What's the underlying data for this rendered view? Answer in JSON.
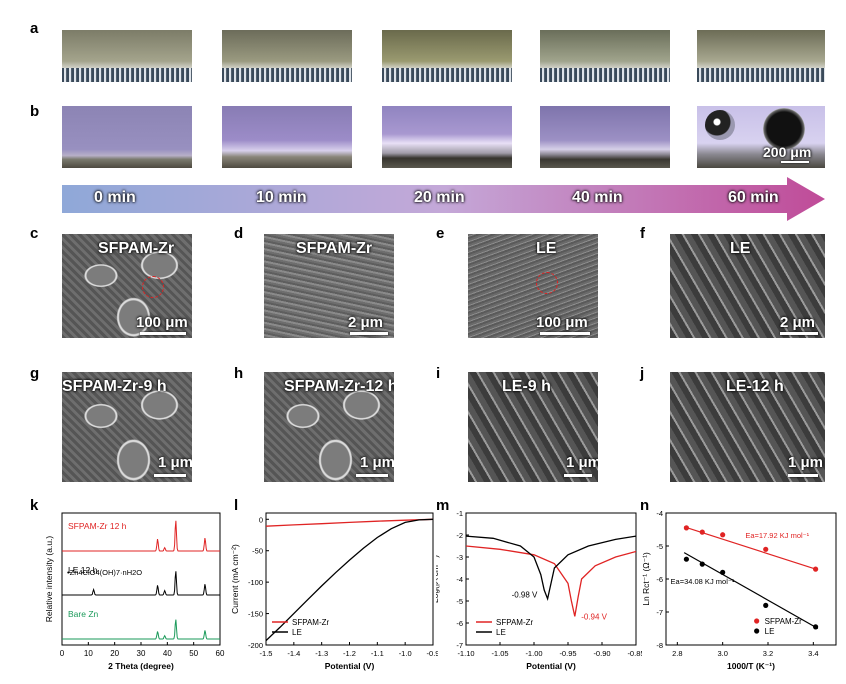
{
  "panels": [
    "a",
    "b",
    "c",
    "d",
    "e",
    "f",
    "g",
    "h",
    "i",
    "j",
    "k",
    "l",
    "m",
    "n"
  ],
  "timeline": [
    "0 min",
    "10 min",
    "20 min",
    "40 min",
    "60 min"
  ],
  "colors": {
    "red": "#e02424",
    "black": "#000000",
    "green": "#1a9a5a",
    "arrow_start": "#8fa8d8",
    "arrow_end": "#c04b98"
  },
  "panel_b_scale": "200 μm",
  "sem": {
    "c": {
      "label": "SFPAM-Zr",
      "scale": "100 μm"
    },
    "d": {
      "label": "SFPAM-Zr",
      "scale": "2 μm"
    },
    "e": {
      "label": "LE",
      "scale": "100 μm"
    },
    "f": {
      "label": "LE",
      "scale": "2 μm"
    },
    "g": {
      "label": "SFPAM-Zr-9 h",
      "scale": "1 μm"
    },
    "h": {
      "label": "SFPAM-Zr-12 h",
      "scale": "1 μm"
    },
    "i": {
      "label": "LE-9 h",
      "scale": "1 μm"
    },
    "j": {
      "label": "LE-12 h",
      "scale": "1 μm"
    }
  },
  "chart_data": [
    {
      "panel": "k",
      "type": "line",
      "title": "",
      "xlabel": "2 Theta (degree)",
      "ylabel": "Relative intensity (a.u.)",
      "xlim": [
        0,
        60
      ],
      "xticks": [
        "0",
        "10",
        "20",
        "30",
        "40",
        "50",
        "60"
      ],
      "series": [
        {
          "name": "SFPAM-Zr 12 h",
          "color": "#e02424",
          "baseline": 3,
          "peaks": [
            [
              36.3,
              0.55
            ],
            [
              39.0,
              0.15
            ],
            [
              43.2,
              1.4
            ],
            [
              54.3,
              0.6
            ]
          ]
        },
        {
          "name": "LE 12 h",
          "color": "#000000",
          "baseline": 2,
          "peaks": [
            [
              12.0,
              0.25
            ],
            [
              36.3,
              0.45
            ],
            [
              39.0,
              0.2
            ],
            [
              43.2,
              1.1
            ],
            [
              54.3,
              0.5
            ]
          ]
        },
        {
          "name": "Bare Zn",
          "color": "#1a9a5a",
          "baseline": 1,
          "peaks": [
            [
              36.3,
              0.35
            ],
            [
              39.0,
              0.15
            ],
            [
              43.2,
              0.9
            ],
            [
              54.3,
              0.4
            ]
          ]
        }
      ],
      "annotation": "•Zn4ClO4(OH)7·nH2O"
    },
    {
      "panel": "l",
      "type": "line",
      "title": "",
      "xlabel": "Potential (V)",
      "ylabel": "Current (mA cm⁻²)",
      "xlim": [
        -1.5,
        -0.9
      ],
      "ylim": [
        -200,
        10
      ],
      "xticks": [
        "-1.5",
        "-1.4",
        "-1.3",
        "-1.2",
        "-1.1",
        "-1.0",
        "-0.9"
      ],
      "yticks": [
        "0",
        "-50",
        "-100",
        "-150",
        "-200"
      ],
      "series": [
        {
          "name": "SFPAM-Zr",
          "color": "#e02424",
          "x": [
            -1.5,
            -1.4,
            -1.3,
            -1.2,
            -1.1,
            -1.0,
            -0.9
          ],
          "y": [
            -11,
            -9,
            -7,
            -5,
            -3,
            -1.5,
            0
          ]
        },
        {
          "name": "LE",
          "color": "#000000",
          "x": [
            -1.5,
            -1.45,
            -1.4,
            -1.35,
            -1.3,
            -1.25,
            -1.2,
            -1.15,
            -1.1,
            -1.05,
            -1.0,
            -0.95,
            -0.9
          ],
          "y": [
            -193,
            -172,
            -150,
            -128,
            -106,
            -85,
            -65,
            -46,
            -29,
            -15,
            -5,
            -1,
            0
          ]
        }
      ]
    },
    {
      "panel": "m",
      "type": "line",
      "title": "",
      "xlabel": "Potential (V)",
      "ylabel": "Log(|A cm⁻²)",
      "xlim": [
        -1.1,
        -0.85
      ],
      "ylim": [
        -7,
        -1
      ],
      "xticks": [
        "-1.10",
        "-1.05",
        "-1.00",
        "-0.95",
        "-0.90",
        "-0.85"
      ],
      "yticks": [
        "-1",
        "-2",
        "-3",
        "-4",
        "-5",
        "-6",
        "-7"
      ],
      "series": [
        {
          "name": "SFPAM-Zr",
          "color": "#e02424",
          "x": [
            -1.1,
            -1.05,
            -1.0,
            -0.97,
            -0.95,
            -0.945,
            -0.94,
            -0.935,
            -0.93,
            -0.91,
            -0.88,
            -0.85
          ],
          "y": [
            -2.5,
            -2.65,
            -2.9,
            -3.3,
            -4.2,
            -5.0,
            -5.7,
            -4.8,
            -4.0,
            -3.4,
            -3.0,
            -2.75
          ]
        },
        {
          "name": "LE",
          "color": "#000000",
          "x": [
            -1.1,
            -1.06,
            -1.02,
            -1.0,
            -0.99,
            -0.985,
            -0.98,
            -0.975,
            -0.97,
            -0.95,
            -0.92,
            -0.88,
            -0.85
          ],
          "y": [
            -2.05,
            -2.15,
            -2.5,
            -3.0,
            -3.8,
            -4.5,
            -4.9,
            -4.2,
            -3.5,
            -2.9,
            -2.5,
            -2.2,
            -2.05
          ]
        }
      ],
      "annotations": [
        "-0.98 V",
        "-0.94 V"
      ]
    },
    {
      "panel": "n",
      "type": "scatter",
      "title": "",
      "xlabel": "1000/T (K⁻¹)",
      "ylabel": "Ln Rct⁻¹ (Ω⁻¹)",
      "xlim": [
        2.75,
        3.5
      ],
      "ylim": [
        -8,
        -4
      ],
      "xticks": [
        "2.8",
        "3.0",
        "3.2",
        "3.4"
      ],
      "yticks": [
        "-4",
        "-5",
        "-6",
        "-7",
        "-8"
      ],
      "series": [
        {
          "name": "SFPAM-Zr",
          "color": "#e02424",
          "x": [
            2.84,
            2.91,
            3.0,
            3.19,
            3.41
          ],
          "y": [
            -4.45,
            -4.58,
            -4.66,
            -5.1,
            -5.7
          ],
          "fit": [
            [
              2.83,
              -4.42
            ],
            [
              3.42,
              -5.72
            ]
          ],
          "label": "Ea=17.92 KJ mol⁻¹"
        },
        {
          "name": "LE",
          "color": "#000000",
          "x": [
            2.84,
            2.91,
            3.0,
            3.19,
            3.41
          ],
          "y": [
            -5.4,
            -5.55,
            -5.8,
            -6.8,
            -7.45
          ],
          "fit": [
            [
              2.83,
              -5.2
            ],
            [
              3.42,
              -7.5
            ]
          ],
          "label": "Ea=34.08 KJ mol⁻¹"
        }
      ]
    }
  ]
}
